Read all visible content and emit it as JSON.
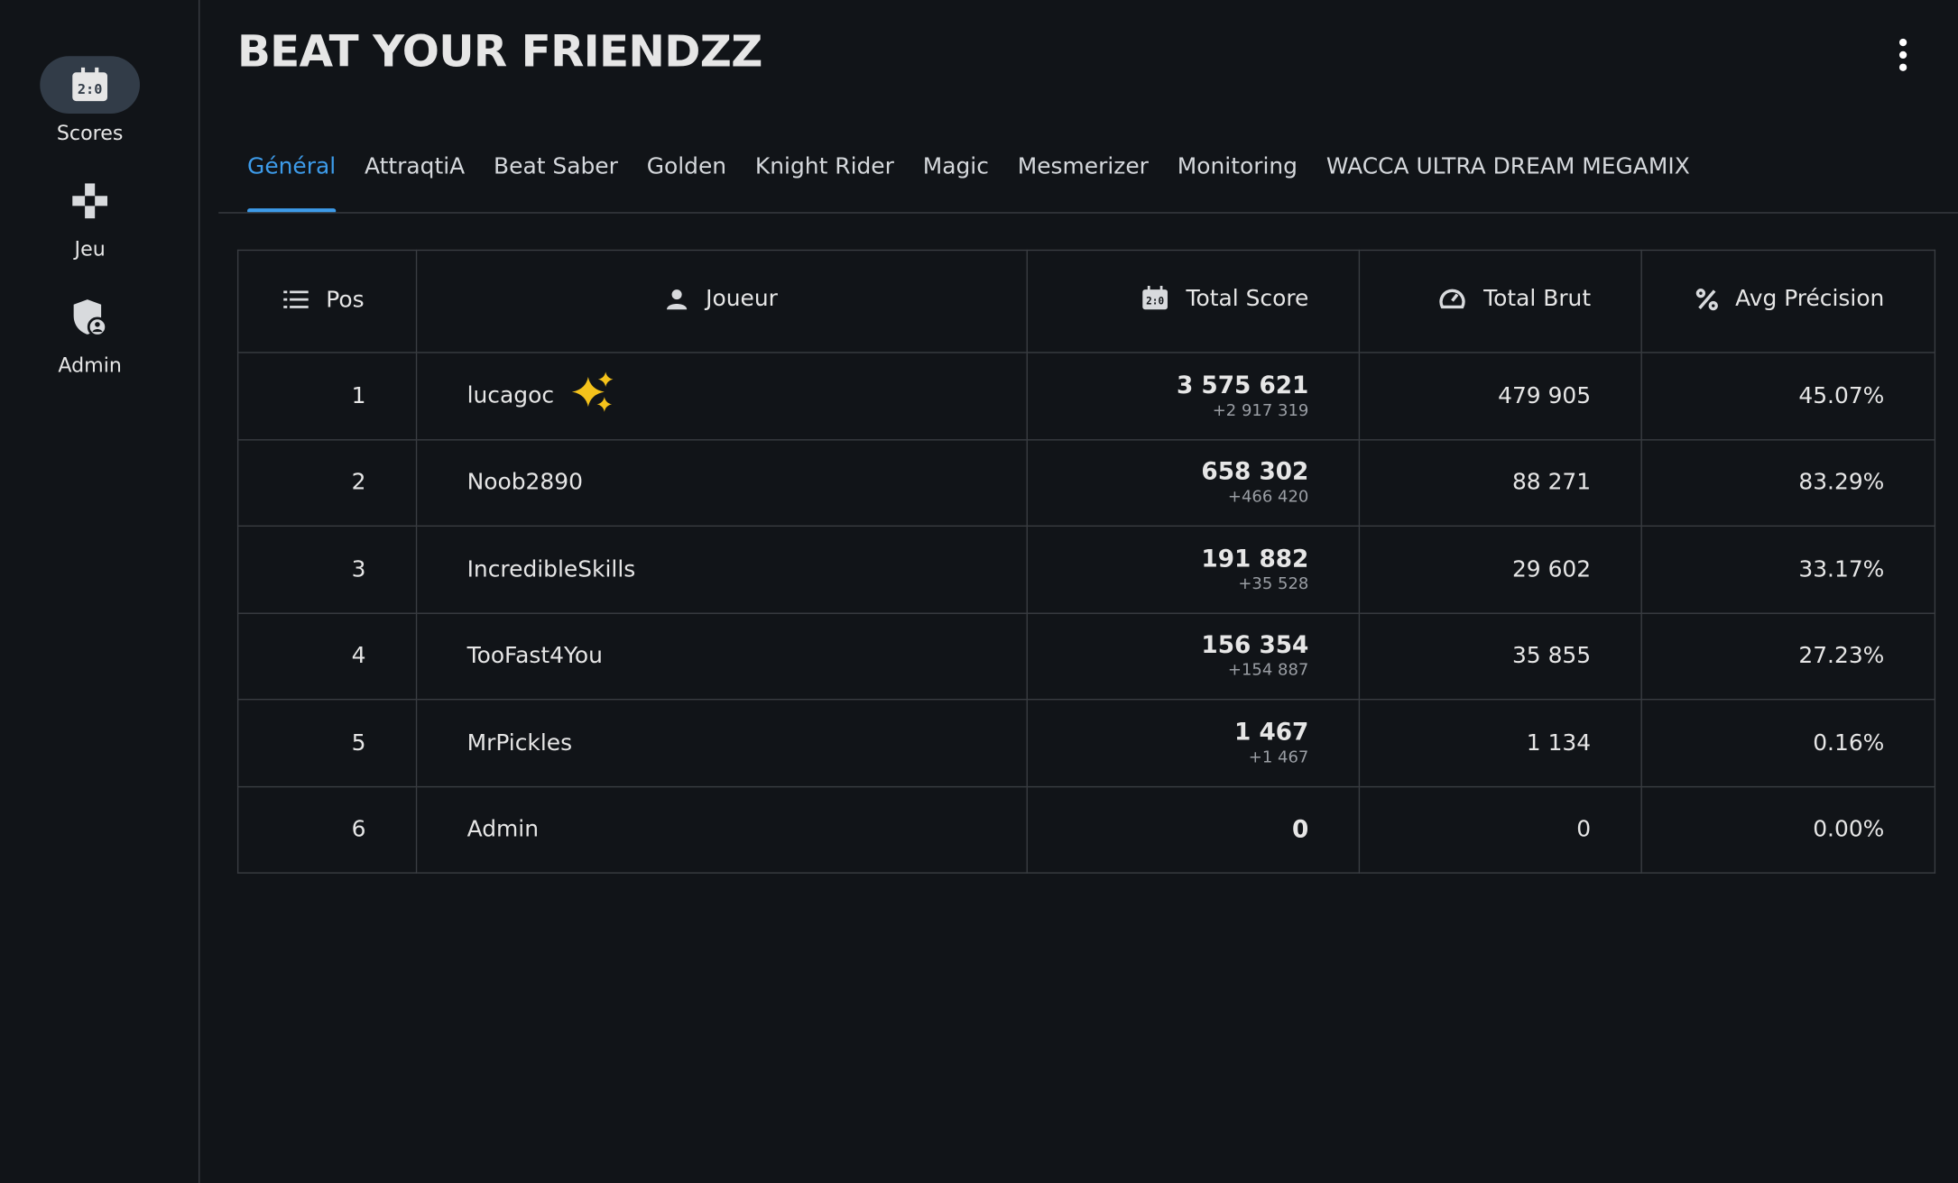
{
  "nav": [
    {
      "label": "Scores"
    },
    {
      "label": "Jeu"
    },
    {
      "label": "Admin"
    }
  ],
  "header": {
    "title": "BEAT YOUR FRIENDZZ"
  },
  "tabs": [
    "Général",
    "AttraqtiA",
    "Beat Saber",
    "Golden",
    "Knight Rider",
    "Magic",
    "Mesmerizer",
    "Monitoring",
    "WACCA ULTRA DREAM MEGAMIX"
  ],
  "table": {
    "columns": [
      "Pos",
      "Joueur",
      "Total Score",
      "Total Brut",
      "Avg Précision"
    ],
    "rows": [
      {
        "pos": "1",
        "player": "lucagoc",
        "score": "3 575 621",
        "delta": "+2 917 319",
        "brut": "479 905",
        "precision": "45.07%"
      },
      {
        "pos": "2",
        "player": "Noob2890",
        "score": "658 302",
        "delta": "+466 420",
        "brut": "88 271",
        "precision": "83.29%"
      },
      {
        "pos": "3",
        "player": "IncredibleSkills",
        "score": "191 882",
        "delta": "+35 528",
        "brut": "29 602",
        "precision": "33.17%"
      },
      {
        "pos": "4",
        "player": "TooFast4You",
        "score": "156 354",
        "delta": "+154 887",
        "brut": "35 855",
        "precision": "27.23%"
      },
      {
        "pos": "5",
        "player": "MrPickles",
        "score": "1 467",
        "delta": "+1 467",
        "brut": "1 134",
        "precision": "0.16%"
      },
      {
        "pos": "6",
        "player": "Admin",
        "score": "0",
        "delta": null,
        "brut": "0",
        "precision": "0.00%"
      }
    ]
  }
}
